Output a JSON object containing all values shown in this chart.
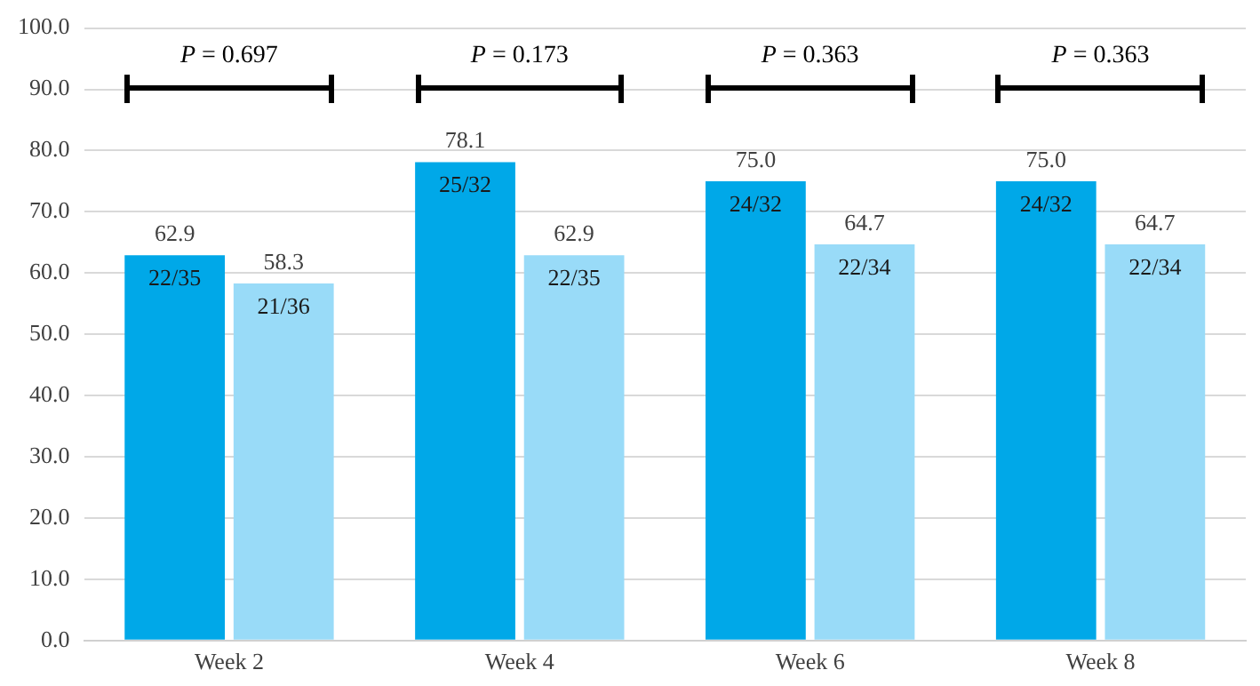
{
  "chart_data": {
    "type": "bar",
    "categories": [
      "Week 2",
      "Week 4",
      "Week 6",
      "Week 8"
    ],
    "series": [
      {
        "color": "#00a8e8",
        "values": [
          62.9,
          78.1,
          75.0,
          75.0
        ],
        "value_labels": [
          "62.9",
          "78.1",
          "75.0",
          "75.0"
        ]
      },
      {
        "color": "#99dbf8",
        "values": [
          58.3,
          62.9,
          64.7,
          64.7
        ],
        "value_labels": [
          "58.3",
          "62.9",
          "64.7",
          "64.7"
        ]
      }
    ],
    "ylim": [
      0,
      100
    ],
    "yticks": [
      {
        "value": 0,
        "label": "0.0"
      },
      {
        "value": 10,
        "label": "10.0"
      },
      {
        "value": 20,
        "label": "20.0"
      },
      {
        "value": 30,
        "label": "30.0"
      },
      {
        "value": 40,
        "label": "40.0"
      },
      {
        "value": 50,
        "label": "50.0"
      },
      {
        "value": 60,
        "label": "60.0"
      },
      {
        "value": 70,
        "label": "70.0"
      },
      {
        "value": 80,
        "label": "80.0"
      },
      {
        "value": 90,
        "label": "90.0"
      },
      {
        "value": 100,
        "label": "100.0"
      }
    ],
    "grid": "y",
    "legend": false,
    "annotations": [
      "P = 0.697",
      "P = 0.173",
      "P = 0.363",
      "P = 0.363",
      {
        "text": "22/35",
        "x": "Week 2",
        "y": 62.9
      },
      {
        "text": "21/36",
        "x": "Week 2",
        "y": 58.3
      },
      {
        "text": "25/32",
        "x": "Week 4",
        "y": 78.1
      },
      {
        "text": "22/35",
        "x": "Week 4",
        "y": 62.9
      },
      {
        "text": "24/32",
        "x": "Week 6",
        "y": 75.0
      },
      {
        "text": "22/34",
        "x": "Week 6",
        "y": 64.7
      },
      {
        "text": "24/32",
        "x": "Week 8",
        "y": 75.0
      },
      {
        "text": "22/34",
        "x": "Week 8",
        "y": 64.7
      }
    ]
  }
}
